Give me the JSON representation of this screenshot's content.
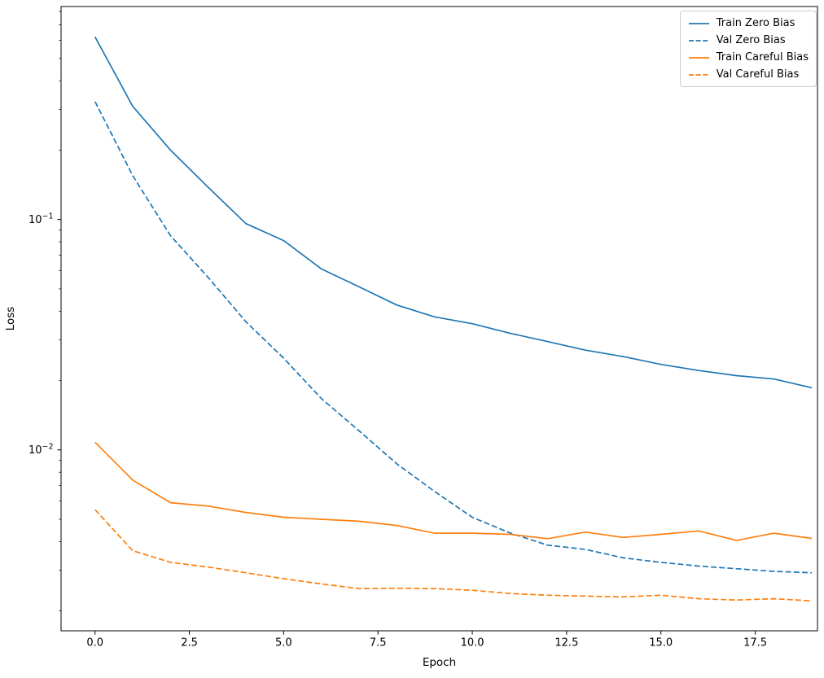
{
  "chart_data": {
    "type": "line",
    "xlabel": "Epoch",
    "ylabel": "Loss",
    "yscale": "log",
    "grid": false,
    "legend_position": "upper right",
    "xlim": [
      -0.9,
      19.15
    ],
    "ylim": [
      0.00164,
      0.84
    ],
    "x": [
      0,
      1,
      2,
      3,
      4,
      5,
      6,
      7,
      8,
      9,
      10,
      11,
      12,
      13,
      14,
      15,
      16,
      17,
      18,
      19
    ],
    "xticks": [
      {
        "value": 0,
        "label": "0.0"
      },
      {
        "value": 2.5,
        "label": "2.5"
      },
      {
        "value": 5,
        "label": "5.0"
      },
      {
        "value": 7.5,
        "label": "7.5"
      },
      {
        "value": 10,
        "label": "10.0"
      },
      {
        "value": 12.5,
        "label": "12.5"
      },
      {
        "value": 15,
        "label": "15.0"
      },
      {
        "value": 17.5,
        "label": "17.5"
      }
    ],
    "yticks": [
      {
        "value": 0.1,
        "mantissa": "10",
        "exponent": "−1",
        "label": "10^-1"
      },
      {
        "value": 0.01,
        "mantissa": "10",
        "exponent": "−2",
        "label": "10^-2"
      }
    ],
    "series": [
      {
        "name": "Train Zero Bias",
        "color": "#1f77b4",
        "dash": "solid",
        "values": [
          0.62,
          0.31,
          0.2,
          0.138,
          0.096,
          0.081,
          0.061,
          0.051,
          0.0425,
          0.0378,
          0.0353,
          0.0321,
          0.0295,
          0.0271,
          0.0254,
          0.0235,
          0.0221,
          0.021,
          0.0203,
          0.0186
        ]
      },
      {
        "name": "Val Zero Bias",
        "color": "#1f77b4",
        "dash": "dashed",
        "values": [
          0.325,
          0.155,
          0.085,
          0.056,
          0.036,
          0.025,
          0.0167,
          0.0121,
          0.0087,
          0.0066,
          0.0051,
          0.00436,
          0.00386,
          0.0037,
          0.0034,
          0.00325,
          0.00313,
          0.00305,
          0.00297,
          0.00293
        ]
      },
      {
        "name": "Train Careful Bias",
        "color": "#ff7f0e",
        "dash": "solid",
        "values": [
          0.0108,
          0.0074,
          0.0059,
          0.0057,
          0.00535,
          0.0051,
          0.005,
          0.0049,
          0.0047,
          0.00435,
          0.00435,
          0.0043,
          0.00412,
          0.0044,
          0.00417,
          0.0043,
          0.00445,
          0.00405,
          0.00435,
          0.00413
        ]
      },
      {
        "name": "Val Careful Bias",
        "color": "#ff7f0e",
        "dash": "dashed",
        "values": [
          0.0055,
          0.00365,
          0.00325,
          0.0031,
          0.00293,
          0.00276,
          0.00262,
          0.0025,
          0.00251,
          0.0025,
          0.00246,
          0.00238,
          0.00234,
          0.00232,
          0.0023,
          0.00234,
          0.00226,
          0.00223,
          0.00226,
          0.00221
        ]
      }
    ]
  }
}
